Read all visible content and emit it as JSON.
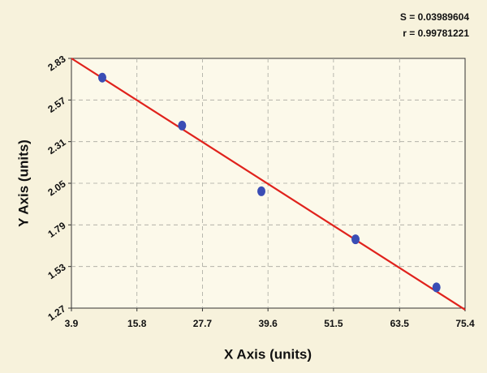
{
  "chart_data": {
    "type": "scatter",
    "annotations": [
      "S = 0.03989604",
      "r = 0.99781221"
    ],
    "x_label": "X Axis (units)",
    "y_label": "Y Axis (units)",
    "series": [
      {
        "kind": "points",
        "color": "#3a4db5",
        "x": [
          9.5,
          24,
          38.4,
          55.5,
          70.2
        ],
        "values": [
          2.71,
          2.41,
          2.0,
          1.7,
          1.4
        ]
      },
      {
        "kind": "line",
        "color": "#e0221c",
        "x": [
          3.9,
          75.4
        ],
        "values": [
          2.83,
          1.26
        ]
      }
    ],
    "xlim": [
      3.9,
      75.4
    ],
    "xticks": [
      3.9,
      15.8,
      27.7,
      39.6,
      51.5,
      63.5,
      75.4
    ],
    "ylim": [
      1.27,
      2.83
    ],
    "yticks": [
      1.27,
      1.53,
      1.79,
      2.05,
      2.31,
      2.57,
      2.83
    ],
    "grid": true
  }
}
